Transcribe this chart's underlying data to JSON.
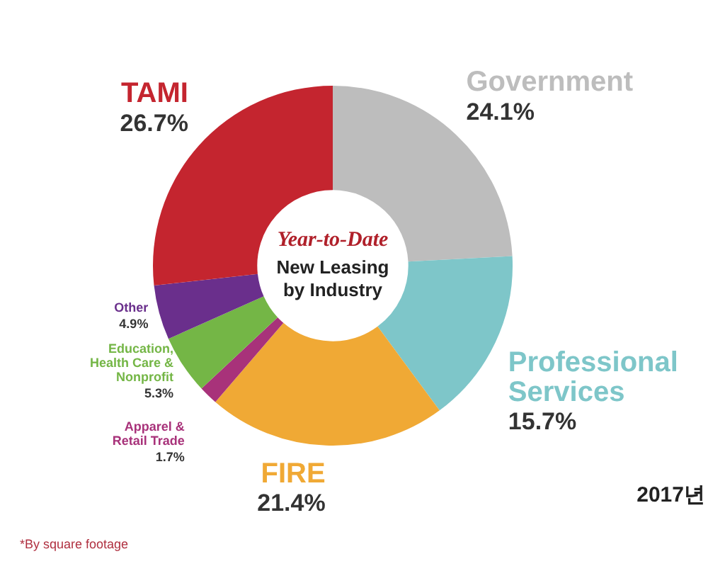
{
  "chart_data": {
    "type": "donut",
    "title": "Year-to-Date",
    "subtitle": "New Leasing by Industry",
    "categories": [
      "Government",
      "Professional Services",
      "FIRE",
      "Apparel & Retail Trade",
      "Education, Health Care & Nonprofit",
      "Other",
      "TAMI"
    ],
    "values": [
      24.1,
      15.7,
      21.4,
      1.7,
      5.3,
      4.9,
      26.7
    ],
    "value_labels": [
      "24.1%",
      "15.7%",
      "21.4%",
      "1.7%",
      "5.3%",
      "4.9%",
      "26.7%"
    ],
    "colors": [
      "#bdbdbd",
      "#7ec6c9",
      "#f0a935",
      "#a8327a",
      "#74b646",
      "#6a2f8c",
      "#c4252f"
    ],
    "legend": false,
    "annotations": [
      "*By square footage",
      "2017년"
    ]
  }
}
